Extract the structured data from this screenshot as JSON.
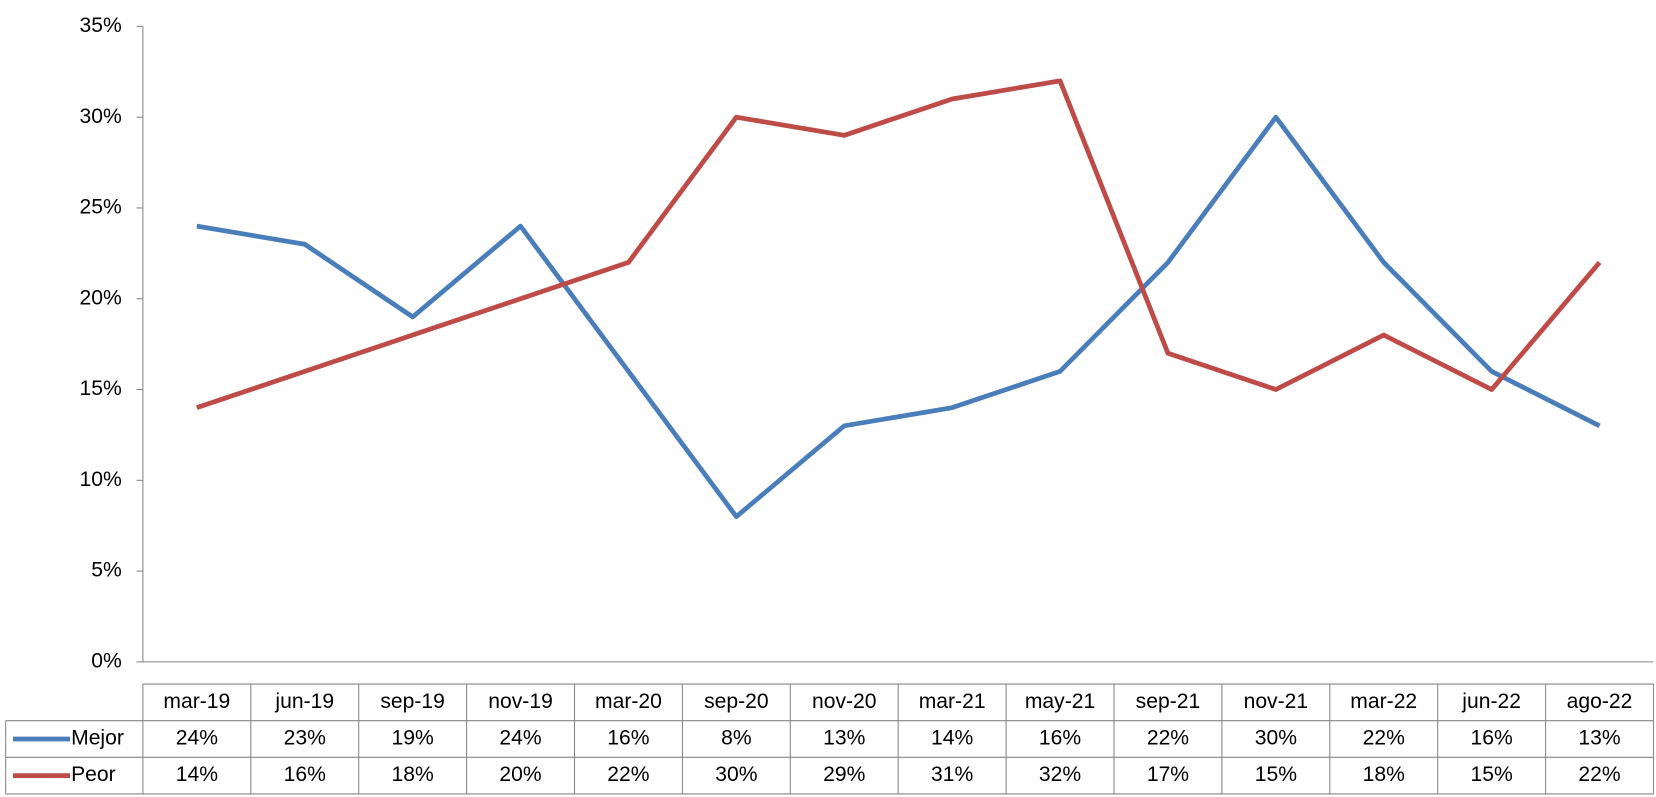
{
  "chart_data": {
    "type": "line",
    "categories": [
      "mar-19",
      "jun-19",
      "sep-19",
      "nov-19",
      "mar-20",
      "sep-20",
      "nov-20",
      "mar-21",
      "may-21",
      "sep-21",
      "nov-21",
      "mar-22",
      "jun-22",
      "ago-22"
    ],
    "series": [
      {
        "name": "Mejor",
        "color": "#4a7ebb",
        "values": [
          24,
          23,
          19,
          24,
          16,
          8,
          13,
          14,
          16,
          22,
          30,
          22,
          16,
          13
        ],
        "value_labels": [
          "24%",
          "23%",
          "19%",
          "24%",
          "16%",
          "8%",
          "13%",
          "14%",
          "16%",
          "22%",
          "30%",
          "22%",
          "16%",
          "13%"
        ]
      },
      {
        "name": "Peor",
        "color": "#be4b48",
        "values": [
          14,
          16,
          18,
          20,
          22,
          30,
          29,
          31,
          32,
          17,
          15,
          18,
          15,
          22
        ],
        "value_labels": [
          "14%",
          "16%",
          "18%",
          "20%",
          "22%",
          "30%",
          "29%",
          "31%",
          "32%",
          "17%",
          "15%",
          "18%",
          "15%",
          "22%"
        ]
      }
    ],
    "ylim": [
      0,
      35
    ],
    "yticks": [
      {
        "value": 0,
        "label": "0%"
      },
      {
        "value": 5,
        "label": "5%"
      },
      {
        "value": 10,
        "label": "10%"
      },
      {
        "value": 15,
        "label": "15%"
      },
      {
        "value": 20,
        "label": "20%"
      },
      {
        "value": 25,
        "label": "25%"
      },
      {
        "value": 30,
        "label": "30%"
      },
      {
        "value": 35,
        "label": "35%"
      }
    ],
    "data_table": true
  }
}
